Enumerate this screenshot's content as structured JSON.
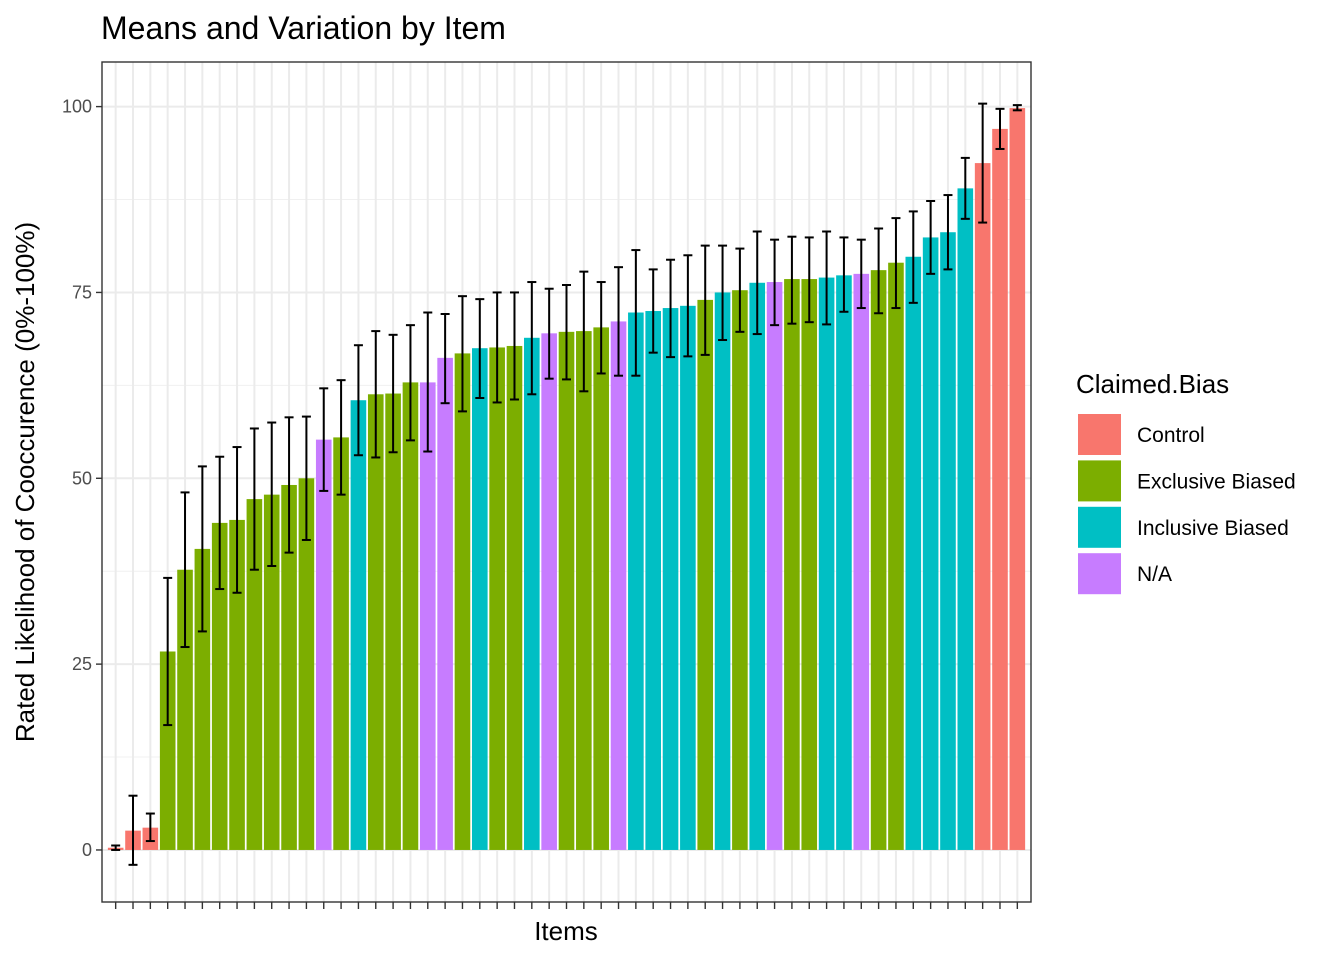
{
  "chart_data": {
    "type": "bar",
    "title": "Means and Variation by Item",
    "xlabel": "Items",
    "ylabel": "Rated Likelihood of Cooccurence (0%-100%)",
    "ylim": [
      -7,
      106
    ],
    "y_ticks": [
      0,
      25,
      50,
      75,
      100
    ],
    "grid": true,
    "legend": {
      "title": "Claimed.Bias",
      "position": "right",
      "entries": [
        {
          "name": "Control",
          "color": "#F8766D"
        },
        {
          "name": "Exclusive Biased",
          "color": "#7CAE00"
        },
        {
          "name": "Inclusive Biased",
          "color": "#00BFC4"
        },
        {
          "name": "N/A",
          "color": "#C77CFF"
        }
      ]
    },
    "bars": [
      {
        "group": "Control",
        "value": 0.3,
        "lower": 0.0,
        "upper": 0.6
      },
      {
        "group": "Control",
        "value": 2.6,
        "lower": -2.0,
        "upper": 7.3
      },
      {
        "group": "Control",
        "value": 3.0,
        "lower": 1.2,
        "upper": 4.9
      },
      {
        "group": "Exclusive Biased",
        "value": 26.7,
        "lower": 16.8,
        "upper": 36.6
      },
      {
        "group": "Exclusive Biased",
        "value": 37.7,
        "lower": 27.3,
        "upper": 48.1
      },
      {
        "group": "Exclusive Biased",
        "value": 40.5,
        "lower": 29.4,
        "upper": 51.6
      },
      {
        "group": "Exclusive Biased",
        "value": 44.0,
        "lower": 35.1,
        "upper": 52.9
      },
      {
        "group": "Exclusive Biased",
        "value": 44.4,
        "lower": 34.6,
        "upper": 54.2
      },
      {
        "group": "Exclusive Biased",
        "value": 47.2,
        "lower": 37.7,
        "upper": 56.7
      },
      {
        "group": "Exclusive Biased",
        "value": 47.8,
        "lower": 38.2,
        "upper": 57.5
      },
      {
        "group": "Exclusive Biased",
        "value": 49.1,
        "lower": 40.0,
        "upper": 58.2
      },
      {
        "group": "Exclusive Biased",
        "value": 50.0,
        "lower": 41.7,
        "upper": 58.3
      },
      {
        "group": "N/A",
        "value": 55.2,
        "lower": 48.3,
        "upper": 62.1
      },
      {
        "group": "Exclusive Biased",
        "value": 55.5,
        "lower": 47.8,
        "upper": 63.2
      },
      {
        "group": "Inclusive Biased",
        "value": 60.5,
        "lower": 53.1,
        "upper": 67.9
      },
      {
        "group": "Exclusive Biased",
        "value": 61.3,
        "lower": 52.8,
        "upper": 69.8
      },
      {
        "group": "Exclusive Biased",
        "value": 61.4,
        "lower": 53.5,
        "upper": 69.3
      },
      {
        "group": "Exclusive Biased",
        "value": 62.9,
        "lower": 55.1,
        "upper": 70.6
      },
      {
        "group": "N/A",
        "value": 62.9,
        "lower": 53.6,
        "upper": 72.3
      },
      {
        "group": "N/A",
        "value": 66.2,
        "lower": 60.1,
        "upper": 72.1
      },
      {
        "group": "Exclusive Biased",
        "value": 66.8,
        "lower": 59.0,
        "upper": 74.5
      },
      {
        "group": "Inclusive Biased",
        "value": 67.5,
        "lower": 60.8,
        "upper": 74.1
      },
      {
        "group": "Exclusive Biased",
        "value": 67.6,
        "lower": 60.2,
        "upper": 75.0
      },
      {
        "group": "Exclusive Biased",
        "value": 67.8,
        "lower": 60.6,
        "upper": 75.0
      },
      {
        "group": "Inclusive Biased",
        "value": 68.9,
        "lower": 61.3,
        "upper": 76.4
      },
      {
        "group": "N/A",
        "value": 69.5,
        "lower": 63.4,
        "upper": 75.5
      },
      {
        "group": "Exclusive Biased",
        "value": 69.7,
        "lower": 63.3,
        "upper": 76.0
      },
      {
        "group": "Exclusive Biased",
        "value": 69.8,
        "lower": 61.7,
        "upper": 77.8
      },
      {
        "group": "Exclusive Biased",
        "value": 70.3,
        "lower": 64.1,
        "upper": 76.4
      },
      {
        "group": "N/A",
        "value": 71.1,
        "lower": 63.8,
        "upper": 78.4
      },
      {
        "group": "Inclusive Biased",
        "value": 72.3,
        "lower": 63.8,
        "upper": 80.7
      },
      {
        "group": "Inclusive Biased",
        "value": 72.5,
        "lower": 66.9,
        "upper": 78.1
      },
      {
        "group": "Inclusive Biased",
        "value": 72.9,
        "lower": 66.3,
        "upper": 79.4
      },
      {
        "group": "Inclusive Biased",
        "value": 73.2,
        "lower": 66.4,
        "upper": 80.0
      },
      {
        "group": "Exclusive Biased",
        "value": 74.0,
        "lower": 66.6,
        "upper": 81.3
      },
      {
        "group": "Inclusive Biased",
        "value": 75.0,
        "lower": 68.6,
        "upper": 81.3
      },
      {
        "group": "Exclusive Biased",
        "value": 75.3,
        "lower": 69.7,
        "upper": 80.9
      },
      {
        "group": "Inclusive Biased",
        "value": 76.3,
        "lower": 69.4,
        "upper": 83.2
      },
      {
        "group": "N/A",
        "value": 76.4,
        "lower": 70.6,
        "upper": 82.1
      },
      {
        "group": "Exclusive Biased",
        "value": 76.8,
        "lower": 70.8,
        "upper": 82.5
      },
      {
        "group": "Exclusive Biased",
        "value": 76.8,
        "lower": 71.0,
        "upper": 82.4
      },
      {
        "group": "Inclusive Biased",
        "value": 77.0,
        "lower": 70.7,
        "upper": 83.2
      },
      {
        "group": "Inclusive Biased",
        "value": 77.3,
        "lower": 72.4,
        "upper": 82.4
      },
      {
        "group": "N/A",
        "value": 77.5,
        "lower": 72.9,
        "upper": 82.1
      },
      {
        "group": "Exclusive Biased",
        "value": 78.0,
        "lower": 72.2,
        "upper": 83.6
      },
      {
        "group": "Exclusive Biased",
        "value": 79.0,
        "lower": 72.9,
        "upper": 85.0
      },
      {
        "group": "Inclusive Biased",
        "value": 79.8,
        "lower": 73.6,
        "upper": 85.9
      },
      {
        "group": "Inclusive Biased",
        "value": 82.4,
        "lower": 77.5,
        "upper": 87.3
      },
      {
        "group": "Inclusive Biased",
        "value": 83.1,
        "lower": 78.1,
        "upper": 88.1
      },
      {
        "group": "Inclusive Biased",
        "value": 89.0,
        "lower": 84.9,
        "upper": 93.1
      },
      {
        "group": "Control",
        "value": 92.4,
        "lower": 84.4,
        "upper": 100.4
      },
      {
        "group": "Control",
        "value": 97.0,
        "lower": 94.3,
        "upper": 99.7
      },
      {
        "group": "Control",
        "value": 99.8,
        "lower": 99.5,
        "upper": 100.2
      }
    ]
  }
}
